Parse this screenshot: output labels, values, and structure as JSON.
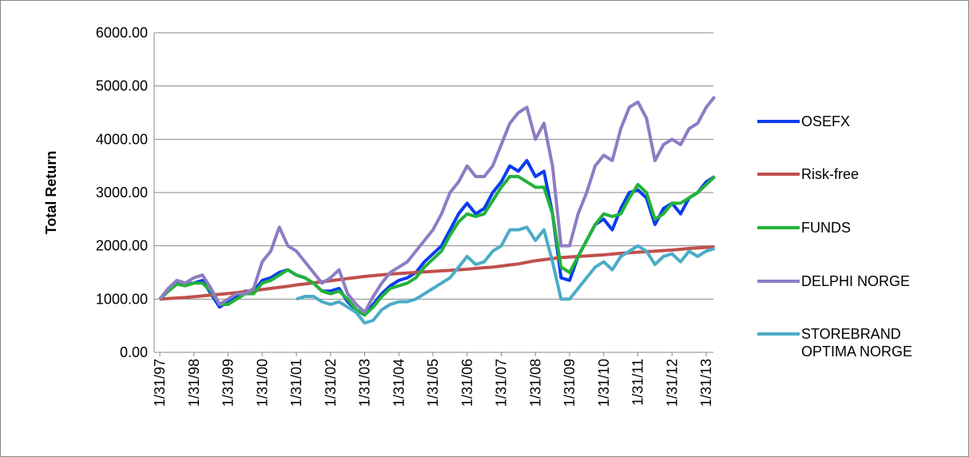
{
  "chart_data": {
    "type": "line",
    "y_label": "Total Return",
    "categories": [
      "1/31/97",
      null,
      null,
      null,
      "1/31/98",
      null,
      null,
      null,
      "1/31/99",
      null,
      null,
      null,
      "1/31/00",
      null,
      null,
      null,
      "1/31/01",
      null,
      null,
      null,
      "1/31/02",
      null,
      null,
      null,
      "1/31/03",
      null,
      null,
      null,
      "1/31/04",
      null,
      null,
      null,
      "1/31/05",
      null,
      null,
      null,
      "1/31/06",
      null,
      null,
      null,
      "1/31/07",
      null,
      null,
      null,
      "1/31/08",
      null,
      null,
      null,
      "1/31/09",
      null,
      null,
      null,
      "1/31/10",
      null,
      null,
      null,
      "1/31/11",
      null,
      null,
      null,
      "1/31/12",
      null,
      null,
      null,
      "1/31/13",
      null
    ],
    "ylim": [
      0,
      6000
    ],
    "yticks": [
      {
        "value": 0,
        "label": "0.00"
      },
      {
        "value": 1000,
        "label": "1000.00"
      },
      {
        "value": 2000,
        "label": "2000.00"
      },
      {
        "value": 3000,
        "label": "3000.00"
      },
      {
        "value": 4000,
        "label": "4000.00"
      },
      {
        "value": 5000,
        "label": "5000.00"
      },
      {
        "value": 6000,
        "label": "6000.00"
      }
    ],
    "grid": true,
    "legend": "right",
    "series": [
      {
        "name": "OSEFX",
        "color": "#0a3cf0",
        "values": [
          1000,
          1150,
          1300,
          1280,
          1300,
          1350,
          1100,
          850,
          950,
          1050,
          1150,
          1150,
          1350,
          1400,
          1500,
          1550,
          1450,
          1400,
          1300,
          1150,
          1150,
          1200,
          950,
          800,
          700,
          900,
          1100,
          1250,
          1350,
          1400,
          1500,
          1700,
          1850,
          2000,
          2300,
          2600,
          2800,
          2600,
          2700,
          3000,
          3200,
          3500,
          3400,
          3600,
          3300,
          3400,
          2600,
          1400,
          1350,
          1800,
          2100,
          2400,
          2500,
          2300,
          2700,
          3000,
          3050,
          2900,
          2400,
          2700,
          2800,
          2600,
          2900,
          3000,
          3200,
          3300
        ]
      },
      {
        "name": "Risk-free",
        "color": "#c0504d",
        "values": [
          1000,
          1010,
          1020,
          1030,
          1045,
          1060,
          1075,
          1090,
          1105,
          1120,
          1140,
          1160,
          1180,
          1200,
          1220,
          1240,
          1265,
          1285,
          1305,
          1325,
          1345,
          1365,
          1385,
          1405,
          1425,
          1440,
          1455,
          1470,
          1480,
          1490,
          1500,
          1510,
          1520,
          1530,
          1540,
          1550,
          1560,
          1575,
          1590,
          1600,
          1620,
          1640,
          1660,
          1690,
          1720,
          1740,
          1760,
          1780,
          1790,
          1800,
          1810,
          1820,
          1830,
          1845,
          1860,
          1870,
          1880,
          1890,
          1900,
          1910,
          1920,
          1935,
          1950,
          1960,
          1970,
          1980
        ]
      },
      {
        "name": "FUNDS",
        "color": "#22b33a",
        "values": [
          1000,
          1150,
          1280,
          1250,
          1300,
          1300,
          1150,
          900,
          900,
          1000,
          1100,
          1100,
          1300,
          1350,
          1450,
          1550,
          1450,
          1400,
          1300,
          1150,
          1100,
          1150,
          1000,
          800,
          700,
          850,
          1050,
          1200,
          1250,
          1300,
          1400,
          1600,
          1750,
          1900,
          2200,
          2450,
          2600,
          2550,
          2600,
          2850,
          3100,
          3300,
          3300,
          3200,
          3100,
          3100,
          2600,
          1600,
          1500,
          1800,
          2100,
          2400,
          2600,
          2550,
          2600,
          2900,
          3150,
          3000,
          2500,
          2600,
          2800,
          2800,
          2900,
          3000,
          3150,
          3300
        ]
      },
      {
        "name": "DELPHI NORGE",
        "color": "#8e7cc3",
        "values": [
          1000,
          1200,
          1350,
          1300,
          1400,
          1450,
          1200,
          900,
          1000,
          1100,
          1100,
          1200,
          1700,
          1900,
          2350,
          2000,
          1900,
          1700,
          1500,
          1300,
          1400,
          1550,
          1100,
          900,
          750,
          1050,
          1300,
          1500,
          1600,
          1700,
          1900,
          2100,
          2300,
          2600,
          3000,
          3200,
          3500,
          3300,
          3300,
          3500,
          3900,
          4300,
          4500,
          4600,
          4000,
          4300,
          3500,
          2000,
          2000,
          2600,
          3000,
          3500,
          3700,
          3600,
          4200,
          4600,
          4700,
          4400,
          3600,
          3900,
          4000,
          3900,
          4200,
          4300,
          4600,
          4800
        ]
      },
      {
        "name": "STOREBRAND OPTIMA NORGE",
        "color": "#4bacc6",
        "values": [
          null,
          null,
          null,
          null,
          null,
          null,
          null,
          null,
          null,
          null,
          null,
          null,
          null,
          null,
          null,
          null,
          1000,
          1050,
          1050,
          950,
          900,
          950,
          850,
          750,
          550,
          600,
          800,
          900,
          950,
          950,
          1000,
          1100,
          1200,
          1300,
          1400,
          1600,
          1800,
          1650,
          1700,
          1900,
          2000,
          2300,
          2300,
          2350,
          2100,
          2300,
          1700,
          1000,
          1000,
          1200,
          1400,
          1600,
          1700,
          1550,
          1800,
          1900,
          2000,
          1900,
          1650,
          1800,
          1850,
          1700,
          1900,
          1800,
          1900,
          1950
        ]
      }
    ]
  }
}
